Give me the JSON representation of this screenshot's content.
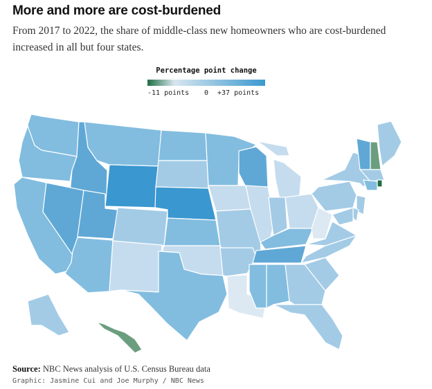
{
  "header": {
    "title": "More and more are cost-burdened",
    "subtitle": "From 2017 to 2022, the share of middle-class new homeowners who are cost-burdened increased in all but four states."
  },
  "legend": {
    "title": "Percentage point change",
    "min_label": "-11 points",
    "zero_label": "0",
    "max_label": "+37 points",
    "colors": [
      "#1f6e43",
      "#d8e6ef",
      "#3b99cf"
    ]
  },
  "chart_data": {
    "type": "choropleth",
    "scale": {
      "min": -11,
      "mid": 0,
      "max": 37
    },
    "color_classes": {
      "darkest_blue": "#3a97cf",
      "dark_blue": "#5fa8d6",
      "mid_blue": "#82bde0",
      "light_blue": "#a3cbe6",
      "pale_blue": "#c5dcee",
      "palest_blue": "#dce9f3",
      "green": "#6b9e7f",
      "dark_green": "#1f6e43"
    },
    "states": [
      {
        "state": "WA",
        "class": "mid_blue"
      },
      {
        "state": "OR",
        "class": "mid_blue"
      },
      {
        "state": "CA",
        "class": "mid_blue"
      },
      {
        "state": "ID",
        "class": "dark_blue"
      },
      {
        "state": "NV",
        "class": "dark_blue"
      },
      {
        "state": "UT",
        "class": "dark_blue"
      },
      {
        "state": "AZ",
        "class": "mid_blue"
      },
      {
        "state": "MT",
        "class": "mid_blue"
      },
      {
        "state": "WY",
        "class": "darkest_blue"
      },
      {
        "state": "CO",
        "class": "light_blue"
      },
      {
        "state": "NM",
        "class": "pale_blue"
      },
      {
        "state": "ND",
        "class": "mid_blue"
      },
      {
        "state": "SD",
        "class": "light_blue"
      },
      {
        "state": "NE",
        "class": "darkest_blue"
      },
      {
        "state": "KS",
        "class": "mid_blue"
      },
      {
        "state": "OK",
        "class": "pale_blue"
      },
      {
        "state": "TX",
        "class": "mid_blue"
      },
      {
        "state": "MN",
        "class": "mid_blue"
      },
      {
        "state": "IA",
        "class": "pale_blue"
      },
      {
        "state": "MO",
        "class": "light_blue"
      },
      {
        "state": "AR",
        "class": "light_blue"
      },
      {
        "state": "LA",
        "class": "palest_blue"
      },
      {
        "state": "WI",
        "class": "dark_blue"
      },
      {
        "state": "IL",
        "class": "pale_blue"
      },
      {
        "state": "MI",
        "class": "pale_blue"
      },
      {
        "state": "IN",
        "class": "light_blue"
      },
      {
        "state": "OH",
        "class": "pale_blue"
      },
      {
        "state": "KY",
        "class": "mid_blue"
      },
      {
        "state": "TN",
        "class": "dark_blue"
      },
      {
        "state": "MS",
        "class": "mid_blue"
      },
      {
        "state": "AL",
        "class": "mid_blue"
      },
      {
        "state": "GA",
        "class": "light_blue"
      },
      {
        "state": "FL",
        "class": "light_blue"
      },
      {
        "state": "SC",
        "class": "light_blue"
      },
      {
        "state": "NC",
        "class": "light_blue"
      },
      {
        "state": "VA",
        "class": "light_blue"
      },
      {
        "state": "WV",
        "class": "palest_blue"
      },
      {
        "state": "PA",
        "class": "light_blue"
      },
      {
        "state": "NY",
        "class": "light_blue"
      },
      {
        "state": "VT",
        "class": "dark_blue"
      },
      {
        "state": "NH",
        "class": "green"
      },
      {
        "state": "ME",
        "class": "light_blue"
      },
      {
        "state": "MA",
        "class": "light_blue"
      },
      {
        "state": "CT",
        "class": "mid_blue"
      },
      {
        "state": "RI",
        "class": "dark_green"
      },
      {
        "state": "NJ",
        "class": "light_blue"
      },
      {
        "state": "DE",
        "class": "light_blue"
      },
      {
        "state": "MD",
        "class": "light_blue"
      },
      {
        "state": "AK",
        "class": "light_blue"
      },
      {
        "state": "HI",
        "class": "green"
      }
    ]
  },
  "footer": {
    "source_label": "Source:",
    "source_text": " NBC News analysis of U.S. Census Bureau data",
    "credit": "Graphic: Jasmine Cui and Joe Murphy / NBC News"
  }
}
